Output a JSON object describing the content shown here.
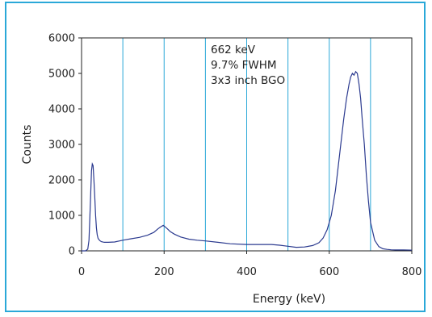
{
  "chart_data": {
    "type": "line",
    "title": "",
    "xlabel": "Energy (keV)",
    "ylabel": "Counts",
    "xlim": [
      0,
      800
    ],
    "ylim": [
      0,
      6000
    ],
    "x_ticks": [
      0,
      200,
      400,
      600,
      800
    ],
    "y_ticks": [
      0,
      1000,
      2000,
      3000,
      4000,
      5000,
      6000
    ],
    "vertical_gridlines_at": [
      100,
      200,
      300,
      400,
      500,
      600,
      700
    ],
    "grid": "vertical lines only",
    "legend": "none",
    "annotations": [
      "662 keV",
      "9.7% FWHM",
      "3x3 inch BGO"
    ],
    "colors": {
      "series": "#2b3a8f",
      "gridlines": "#2aa8d8",
      "frame": "#2aa8d8",
      "axes": "#222222"
    },
    "series": [
      {
        "x": [
          0,
          10,
          15,
          18,
          21,
          24,
          26,
          28,
          30,
          32,
          34,
          36,
          38,
          40,
          44,
          48,
          55,
          65,
          80,
          100,
          120,
          140,
          160,
          175,
          185,
          192,
          198,
          202,
          208,
          215,
          225,
          240,
          260,
          280,
          300,
          330,
          360,
          400,
          430,
          460,
          480,
          500,
          520,
          540,
          560,
          575,
          585,
          595,
          605,
          615,
          625,
          635,
          642,
          648,
          652,
          656,
          660,
          664,
          668,
          672,
          676,
          680,
          685,
          690,
          695,
          700,
          710,
          720,
          730,
          740,
          750,
          760,
          780,
          800
        ],
        "y": [
          0,
          0,
          50,
          300,
          1200,
          2250,
          2450,
          2400,
          2000,
          1500,
          1000,
          650,
          450,
          350,
          290,
          260,
          240,
          240,
          250,
          300,
          340,
          380,
          440,
          520,
          620,
          680,
          720,
          680,
          620,
          540,
          470,
          390,
          330,
          300,
          280,
          240,
          200,
          180,
          180,
          180,
          160,
          130,
          100,
          110,
          150,
          230,
          360,
          600,
          1000,
          1700,
          2700,
          3700,
          4300,
          4700,
          4900,
          5000,
          4950,
          5050,
          5000,
          4700,
          4300,
          3700,
          3000,
          2100,
          1400,
          800,
          300,
          120,
          60,
          40,
          30,
          25,
          25,
          20
        ]
      }
    ]
  }
}
